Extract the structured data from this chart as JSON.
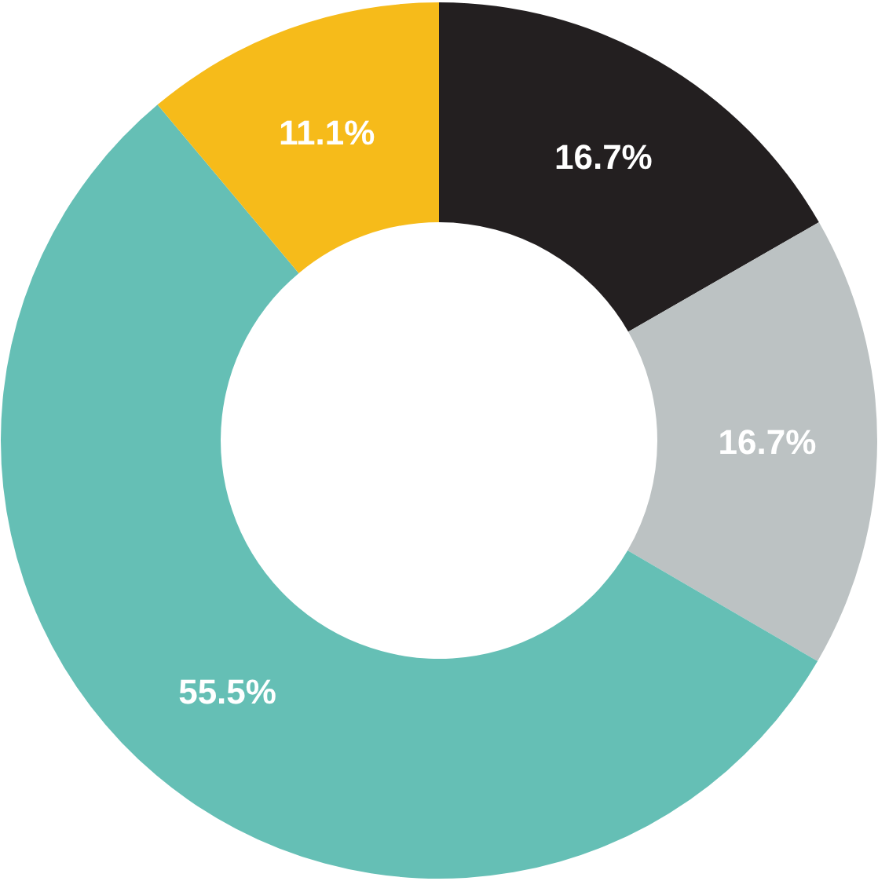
{
  "chart_data": {
    "type": "donut",
    "categories": [
      null,
      null,
      null,
      null
    ],
    "values": [
      16.7,
      16.7,
      55.5,
      11.1
    ],
    "colors": [
      "#231f20",
      "#bcc2c3",
      "#65bfb5",
      "#f6bb1a"
    ],
    "value_labels": [
      "16.7%",
      "16.7%",
      "55.5%",
      "11.1%"
    ]
  }
}
